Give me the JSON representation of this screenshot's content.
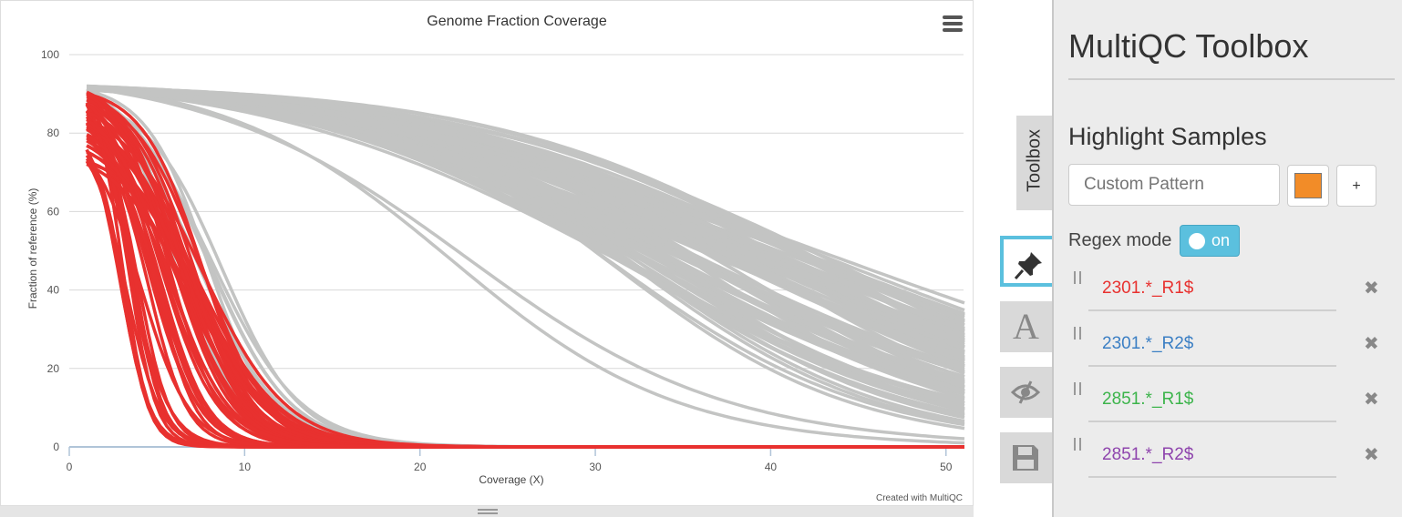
{
  "chart_data": {
    "type": "line",
    "title": "Genome Fraction Coverage",
    "xlabel": "Coverage (X)",
    "ylabel": "Fraction of reference (%)",
    "xlim": [
      0,
      51
    ],
    "ylim": [
      0,
      100
    ],
    "xticks": [
      "0",
      "10",
      "20",
      "30",
      "40",
      "50"
    ],
    "yticks": [
      "0",
      "20",
      "40",
      "60",
      "80",
      "100"
    ],
    "grid": "horizontal",
    "credit": "Created with MultiQC",
    "series_groups": [
      {
        "group": "highlighted",
        "color": "#e8312f",
        "count": 48,
        "shape": "logistic decay",
        "start_range": [
          72,
          91
        ],
        "midpoint_range": [
          2.8,
          7.8
        ]
      },
      {
        "group": "other",
        "color": "#c3c4c3",
        "count": 8,
        "shape": "logistic decay",
        "start_range": [
          88,
          92
        ],
        "midpoint_range": [
          5.5,
          9.0
        ]
      },
      {
        "group": "other",
        "color": "#c3c4c3",
        "count": 2,
        "shape": "logistic decay",
        "start_range": [
          91,
          92
        ],
        "midpoint_range": [
          19,
          23
        ]
      },
      {
        "group": "other",
        "color": "#c3c4c3",
        "count": 110,
        "shape": "logistic decay",
        "start_range": [
          91,
          92
        ],
        "midpoint_range": [
          31,
          44
        ]
      }
    ]
  },
  "menu_icon": "hamburger-menu-icon",
  "toolbox": {
    "tab_label": "Toolbox",
    "title": "MultiQC Toolbox",
    "section_title": "Highlight Samples",
    "pattern_placeholder": "Custom Pattern",
    "color_swatch": "#f28c28",
    "add_label": "+",
    "regex_label": "Regex mode",
    "regex_toggle": "on",
    "patterns": [
      {
        "text": "2301.*_R1$",
        "color": "#e8312f"
      },
      {
        "text": "2301.*_R2$",
        "color": "#3b7fc4"
      },
      {
        "text": "2851.*_R1$",
        "color": "#3cb44b"
      },
      {
        "text": "2851.*_R2$",
        "color": "#8e44ad"
      }
    ],
    "remove_icon": "✖",
    "side_tabs": [
      "pin-icon",
      "font-icon",
      "eye-slash-icon",
      "save-icon"
    ],
    "font_tab_letter": "A"
  }
}
